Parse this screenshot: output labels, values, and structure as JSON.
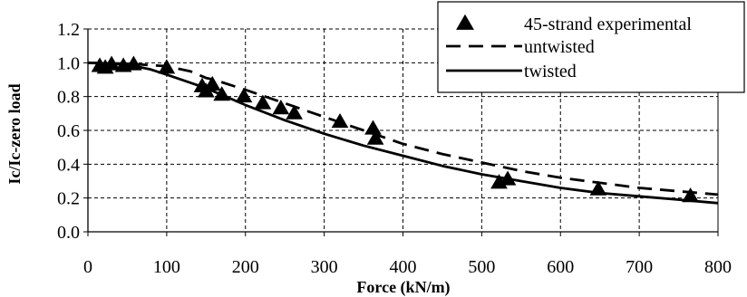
{
  "chart_data": {
    "type": "line",
    "xlabel": "Force (kN/m)",
    "ylabel": "Ic/Ic-zero load",
    "xlim": [
      0,
      800
    ],
    "ylim": [
      0.0,
      1.2
    ],
    "x_ticks": [
      "0",
      "100",
      "200",
      "300",
      "400",
      "500",
      "600",
      "700",
      "800"
    ],
    "y_ticks": [
      "0.0",
      "0.2",
      "0.4",
      "0.6",
      "0.8",
      "1.0",
      "1.2"
    ],
    "grid": true,
    "legend_position": "top-right",
    "series": [
      {
        "name": "45-strand experimental",
        "style": "markers",
        "marker": "triangle",
        "x": [
          15,
          22,
          30,
          45,
          58,
          100,
          145,
          150,
          158,
          170,
          198,
          222,
          245,
          262,
          320,
          362,
          365,
          522,
          533,
          648,
          765
        ],
        "y": [
          0.98,
          0.97,
          0.99,
          0.98,
          0.99,
          0.97,
          0.86,
          0.83,
          0.87,
          0.81,
          0.8,
          0.76,
          0.73,
          0.7,
          0.65,
          0.61,
          0.55,
          0.29,
          0.31,
          0.25,
          0.21
        ]
      },
      {
        "name": "untwisted",
        "style": "dashed",
        "color": "#000000",
        "x": [
          0,
          50,
          100,
          130,
          150,
          160,
          200,
          250,
          300,
          350,
          400,
          450,
          500,
          550,
          600,
          650,
          700,
          750,
          800
        ],
        "y": [
          1.0,
          0.995,
          0.98,
          0.95,
          0.91,
          0.9,
          0.84,
          0.76,
          0.68,
          0.6,
          0.52,
          0.46,
          0.41,
          0.36,
          0.32,
          0.29,
          0.26,
          0.24,
          0.22
        ]
      },
      {
        "name": "twisted",
        "style": "solid",
        "color": "#000000",
        "x": [
          0,
          50,
          80,
          100,
          150,
          200,
          250,
          300,
          350,
          400,
          450,
          500,
          550,
          600,
          650,
          700,
          750,
          800
        ],
        "y": [
          1.0,
          0.99,
          0.96,
          0.93,
          0.85,
          0.75,
          0.66,
          0.58,
          0.51,
          0.45,
          0.39,
          0.34,
          0.3,
          0.26,
          0.23,
          0.21,
          0.19,
          0.17
        ]
      }
    ]
  }
}
